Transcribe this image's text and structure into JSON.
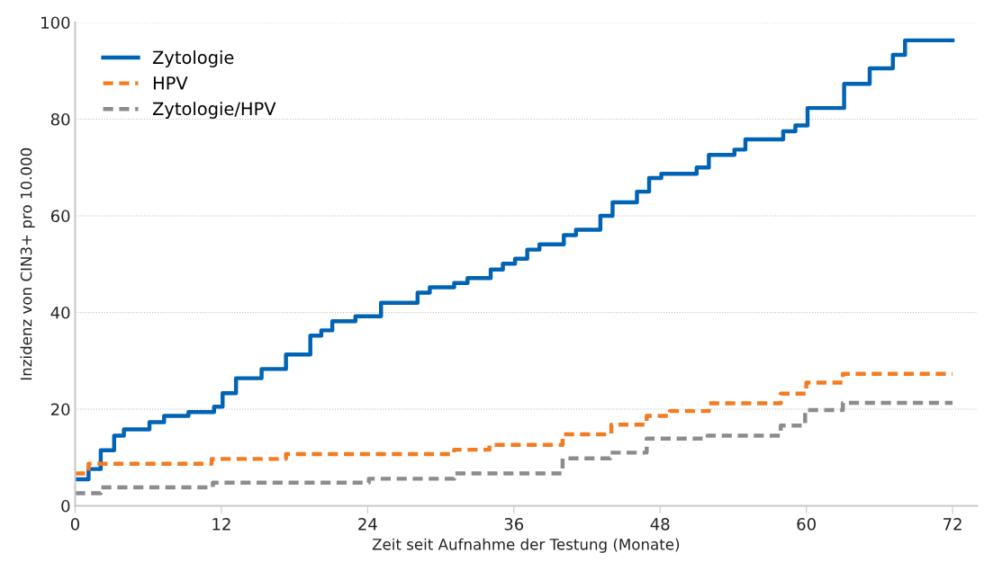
{
  "chart_data": {
    "type": "step",
    "xlabel": "Zeit seit Aufnahme der Testung (Monate)",
    "ylabel": "Inzidenz von CIN3+ pro 10.000",
    "xlim": [
      0,
      74
    ],
    "xticks": [
      0,
      12,
      24,
      36,
      48,
      60,
      72
    ],
    "ylim": [
      0,
      100
    ],
    "yticks": [
      0,
      20,
      40,
      60,
      80,
      100
    ],
    "grid": "y",
    "legend": "top left",
    "series": [
      {
        "name": "Zytologie",
        "color": "#0063b4",
        "line_style": "solid",
        "x": [
          0,
          1.1,
          2.1,
          3.2,
          4.0,
          6.1,
          7.3,
          9.3,
          11.4,
          12.1,
          13.2,
          15.3,
          17.3,
          19.3,
          20.2,
          21.1,
          23.0,
          25.1,
          28.1,
          29.1,
          31.1,
          32.2,
          34.1,
          35.1,
          36.1,
          37.1,
          38.1,
          40.1,
          41.1,
          43.1,
          44.1,
          46.1,
          47.1,
          48.1,
          51.0,
          52.0,
          54.1,
          55.0,
          58.1,
          59.1,
          60.1,
          63.1,
          65.2,
          67.1,
          68.1,
          72
        ],
        "values": [
          5.5,
          7.6,
          11.5,
          14.5,
          15.8,
          17.3,
          18.6,
          19.4,
          20.5,
          23.3,
          26.4,
          28.3,
          31.3,
          35.2,
          36.3,
          38.2,
          39.2,
          42,
          44.1,
          45.2,
          46.1,
          47.1,
          48.9,
          50.1,
          51.1,
          53.0,
          54.1,
          56.0,
          57.1,
          60.0,
          62.8,
          65.0,
          67.8,
          68.7,
          70.0,
          72.6,
          73.7,
          75.8,
          77.5,
          78.7,
          82.3,
          87.3,
          90.5,
          93.3,
          96.3,
          96.3
        ]
      },
      {
        "name": "HPV",
        "color": "#f47b20",
        "line_style": "dashed",
        "x": [
          0,
          1.1,
          11.2,
          17.3,
          31.1,
          34.0,
          40.0,
          44.0,
          46.9,
          48.8,
          52.0,
          57.9,
          60.0,
          63.0,
          72
        ],
        "values": [
          6.7,
          8.7,
          9.7,
          10.7,
          11.6,
          12.6,
          14.8,
          16.8,
          18.6,
          19.6,
          21.2,
          23.2,
          25.5,
          27.3,
          27.3
        ]
      },
      {
        "name": "Zytologie/HPV",
        "color": "#8c8c8e",
        "line_style": "dashed",
        "x": [
          0,
          2.1,
          11.3,
          24.1,
          31.1,
          40.0,
          43.9,
          46.9,
          51.9,
          57.9,
          59.9,
          63.0,
          72
        ],
        "values": [
          2.6,
          3.8,
          4.8,
          5.6,
          6.7,
          9.8,
          11.0,
          13.9,
          14.5,
          16.6,
          19.8,
          21.3,
          21.3
        ]
      }
    ]
  }
}
